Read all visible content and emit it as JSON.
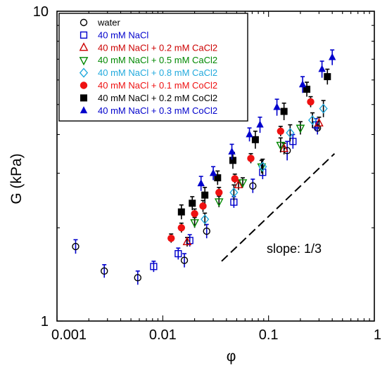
{
  "chart_data": {
    "type": "scatter",
    "title": "",
    "xlabel": "φ",
    "ylabel": "G (kPa)",
    "xscale": "log",
    "yscale": "log",
    "xlim": [
      0.001,
      1
    ],
    "ylim": [
      1,
      10
    ],
    "x_tick_labels": [
      "0.001",
      "0.01",
      "0.1",
      "1"
    ],
    "y_tick_labels": [
      "1",
      "10"
    ],
    "grid": false,
    "legend_position": "top-left",
    "annotation": {
      "text": "slope: 1/3",
      "line_start": [
        0.036,
        1.56
      ],
      "line_end": [
        0.42,
        3.47
      ]
    },
    "series": [
      {
        "name": "water",
        "marker": "circle-open",
        "color": "#000000",
        "error_color": "#0000cc",
        "points": [
          [
            0.0015,
            1.74,
            0.09
          ],
          [
            0.0028,
            1.45,
            0.07
          ],
          [
            0.0058,
            1.38,
            0.07
          ],
          [
            0.016,
            1.57,
            0.08
          ],
          [
            0.026,
            1.95,
            0.1
          ],
          [
            0.071,
            2.73,
            0.14
          ],
          [
            0.15,
            3.55,
            0.25
          ],
          [
            0.29,
            4.2,
            0.2
          ]
        ]
      },
      {
        "name": "40 mM NaCl",
        "marker": "square-open",
        "color": "#0000cc",
        "error_color": "#0000cc",
        "points": [
          [
            0.0082,
            1.5,
            0.06
          ],
          [
            0.014,
            1.65,
            0.07
          ],
          [
            0.018,
            1.82,
            0.08
          ],
          [
            0.047,
            2.42,
            0.1
          ],
          [
            0.088,
            3.02,
            0.15
          ],
          [
            0.17,
            3.8,
            0.2
          ],
          [
            0.28,
            4.3,
            0.2
          ]
        ]
      },
      {
        "name": "40 mM NaCl + 0.2 mM CaCl2",
        "marker": "triangle-up-open",
        "color": "#cc0000",
        "error_color": "#000000",
        "points": [
          [
            0.017,
            1.8,
            0.06
          ],
          [
            0.052,
            2.75,
            0.1
          ],
          [
            0.14,
            3.6,
            0.15
          ],
          [
            0.3,
            4.35,
            0.2
          ]
        ]
      },
      {
        "name": "40 mM NaCl + 0.5 mM CaCl2",
        "marker": "triangle-down-open",
        "color": "#008800",
        "error_color": "#000000",
        "points": [
          [
            0.02,
            2.08,
            0.08
          ],
          [
            0.034,
            2.43,
            0.1
          ],
          [
            0.057,
            2.8,
            0.1
          ],
          [
            0.086,
            3.15,
            0.15
          ],
          [
            0.13,
            3.7,
            0.2
          ],
          [
            0.2,
            4.2,
            0.2
          ]
        ]
      },
      {
        "name": "40 mM NaCl + 0.8 mM CaCl2",
        "marker": "diamond-open",
        "color": "#22aadd",
        "error_color": "#000000",
        "points": [
          [
            0.025,
            2.13,
            0.1
          ],
          [
            0.047,
            2.6,
            0.15
          ],
          [
            0.088,
            3.15,
            0.18
          ],
          [
            0.16,
            4.05,
            0.25
          ],
          [
            0.26,
            4.45,
            0.25
          ],
          [
            0.33,
            4.85,
            0.3
          ]
        ]
      },
      {
        "name": "40 mM NaCl + 0.1 mM CoCl2",
        "marker": "circle-filled",
        "color": "#ee1111",
        "error_color": "#000000",
        "points": [
          [
            0.012,
            1.85,
            0.06
          ],
          [
            0.015,
            2.0,
            0.07
          ],
          [
            0.02,
            2.22,
            0.08
          ],
          [
            0.024,
            2.35,
            0.1
          ],
          [
            0.034,
            2.6,
            0.1
          ],
          [
            0.048,
            2.88,
            0.1
          ],
          [
            0.068,
            3.35,
            0.12
          ],
          [
            0.13,
            4.1,
            0.15
          ],
          [
            0.25,
            5.1,
            0.2
          ]
        ]
      },
      {
        "name": "40 mM NaCl + 0.2 mM CoCl2",
        "marker": "square-filled",
        "color": "#000000",
        "error_color": "#000000",
        "points": [
          [
            0.015,
            2.25,
            0.12
          ],
          [
            0.019,
            2.4,
            0.12
          ],
          [
            0.025,
            2.55,
            0.15
          ],
          [
            0.033,
            2.9,
            0.15
          ],
          [
            0.046,
            3.3,
            0.2
          ],
          [
            0.075,
            3.85,
            0.25
          ],
          [
            0.14,
            4.75,
            0.3
          ],
          [
            0.23,
            5.6,
            0.3
          ],
          [
            0.36,
            6.15,
            0.35
          ]
        ]
      },
      {
        "name": "40 mM NaCl + 0.3 mM CoCl2",
        "marker": "triangle-up-filled",
        "color": "#0000cc",
        "error_color": "#0000cc",
        "points": [
          [
            0.023,
            2.78,
            0.15
          ],
          [
            0.03,
            3.0,
            0.15
          ],
          [
            0.045,
            3.52,
            0.2
          ],
          [
            0.066,
            4.0,
            0.2
          ],
          [
            0.083,
            4.3,
            0.25
          ],
          [
            0.12,
            4.9,
            0.3
          ],
          [
            0.21,
            5.8,
            0.35
          ],
          [
            0.32,
            6.5,
            0.4
          ],
          [
            0.4,
            7.1,
            0.4
          ]
        ]
      }
    ]
  }
}
